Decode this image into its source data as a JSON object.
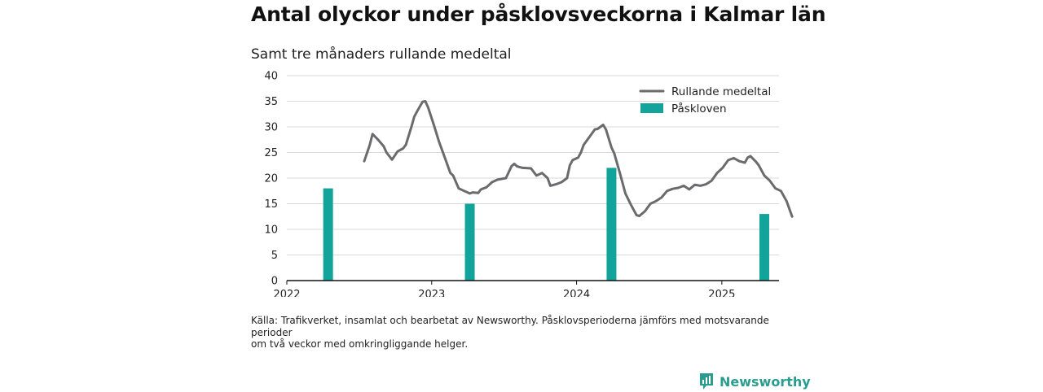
{
  "title": "Antal olyckor under påsklovsveckorna i Kalmar län",
  "subtitle": "Samt tre månaders rullande medeltal",
  "source_lines": [
    "Källa: Trafikverket, insamlat och bearbetat av Newsworthy. Påsklovsperioderna jämförs med motsvarande",
    "perioder",
    "om två veckor med omkringliggande helger."
  ],
  "brand": {
    "name": "Newsworthy",
    "icon": "newsworthy-logo-icon"
  },
  "colors": {
    "line": "#6b6b6e",
    "bar": "#12a39a",
    "grid": "#d9d9d9",
    "axis": "#111111"
  },
  "chart_data": {
    "type": "bar+line",
    "ylim": [
      0,
      40
    ],
    "yticks": [
      0,
      5,
      10,
      15,
      20,
      25,
      30,
      35,
      40
    ],
    "xlim": [
      "2022-01-01",
      "2025-05-25"
    ],
    "xticks": [
      {
        "date": "2022-01-01",
        "label": "2022"
      },
      {
        "date": "2023-01-01",
        "label": "2023"
      },
      {
        "date": "2024-01-01",
        "label": "2024"
      },
      {
        "date": "2025-01-01",
        "label": "2025"
      }
    ],
    "grid": "horizontal",
    "legend_position": "top-right",
    "series": [
      {
        "name": "Rullande medeltal",
        "kind": "line",
        "points": [
          [
            "2022-07-15",
            23.3
          ],
          [
            "2022-07-29",
            26.5
          ],
          [
            "2022-08-05",
            28.6
          ],
          [
            "2022-08-19",
            27.5
          ],
          [
            "2022-09-02",
            26.2
          ],
          [
            "2022-09-09",
            25.0
          ],
          [
            "2022-09-23",
            23.6
          ],
          [
            "2022-10-07",
            25.2
          ],
          [
            "2022-10-21",
            25.8
          ],
          [
            "2022-10-28",
            26.5
          ],
          [
            "2022-11-11",
            30.0
          ],
          [
            "2022-11-18",
            32.0
          ],
          [
            "2022-11-25",
            33.0
          ],
          [
            "2022-12-09",
            34.9
          ],
          [
            "2022-12-16",
            35.0
          ],
          [
            "2022-12-23",
            33.8
          ],
          [
            "2023-01-06",
            30.5
          ],
          [
            "2023-01-20",
            27.0
          ],
          [
            "2023-02-03",
            24.0
          ],
          [
            "2023-02-17",
            21.0
          ],
          [
            "2023-02-24",
            20.5
          ],
          [
            "2023-03-10",
            18.0
          ],
          [
            "2023-03-24",
            17.5
          ],
          [
            "2023-04-07",
            17.0
          ],
          [
            "2023-04-14",
            17.2
          ],
          [
            "2023-04-28",
            17.1
          ],
          [
            "2023-05-05",
            17.8
          ],
          [
            "2023-05-19",
            18.2
          ],
          [
            "2023-06-02",
            19.2
          ],
          [
            "2023-06-16",
            19.7
          ],
          [
            "2023-07-07",
            20.0
          ],
          [
            "2023-07-21",
            22.3
          ],
          [
            "2023-07-28",
            22.8
          ],
          [
            "2023-08-04",
            22.3
          ],
          [
            "2023-08-18",
            22.0
          ],
          [
            "2023-09-08",
            21.9
          ],
          [
            "2023-09-22",
            20.5
          ],
          [
            "2023-10-06",
            21.0
          ],
          [
            "2023-10-20",
            20.0
          ],
          [
            "2023-10-27",
            18.5
          ],
          [
            "2023-11-10",
            18.8
          ],
          [
            "2023-11-24",
            19.2
          ],
          [
            "2023-12-08",
            20.0
          ],
          [
            "2023-12-15",
            22.5
          ],
          [
            "2023-12-22",
            23.5
          ],
          [
            "2024-01-05",
            24.0
          ],
          [
            "2024-01-12",
            25.0
          ],
          [
            "2024-01-19",
            26.5
          ],
          [
            "2024-02-02",
            28.0
          ],
          [
            "2024-02-16",
            29.5
          ],
          [
            "2024-02-23",
            29.6
          ],
          [
            "2024-03-08",
            30.4
          ],
          [
            "2024-03-15",
            29.5
          ],
          [
            "2024-03-29",
            26.0
          ],
          [
            "2024-04-05",
            24.8
          ],
          [
            "2024-04-19",
            21.0
          ],
          [
            "2024-05-03",
            17.0
          ],
          [
            "2024-05-17",
            14.8
          ],
          [
            "2024-05-31",
            12.8
          ],
          [
            "2024-06-07",
            12.6
          ],
          [
            "2024-06-21",
            13.5
          ],
          [
            "2024-07-05",
            15.0
          ],
          [
            "2024-07-19",
            15.5
          ],
          [
            "2024-08-02",
            16.2
          ],
          [
            "2024-08-16",
            17.5
          ],
          [
            "2024-08-30",
            17.9
          ],
          [
            "2024-09-13",
            18.1
          ],
          [
            "2024-09-27",
            18.5
          ],
          [
            "2024-10-11",
            17.8
          ],
          [
            "2024-10-25",
            18.7
          ],
          [
            "2024-11-08",
            18.5
          ],
          [
            "2024-11-22",
            18.8
          ],
          [
            "2024-12-06",
            19.5
          ],
          [
            "2024-12-20",
            21.0
          ],
          [
            "2025-01-03",
            22.0
          ],
          [
            "2025-01-17",
            23.5
          ],
          [
            "2025-01-31",
            23.9
          ],
          [
            "2025-02-14",
            23.3
          ],
          [
            "2025-02-28",
            23.0
          ],
          [
            "2025-03-07",
            24.0
          ],
          [
            "2025-03-14",
            24.3
          ],
          [
            "2025-03-28",
            23.2
          ],
          [
            "2025-04-04",
            22.5
          ],
          [
            "2025-04-18",
            20.5
          ],
          [
            "2025-05-02",
            19.5
          ],
          [
            "2025-05-16",
            18.0
          ],
          [
            "2025-05-30",
            17.5
          ],
          [
            "2025-06-13",
            15.5
          ],
          [
            "2025-06-27",
            12.5
          ]
        ]
      },
      {
        "name": "Påskloven",
        "kind": "bar",
        "points": [
          [
            "2022-04-15",
            18
          ],
          [
            "2023-04-07",
            15
          ],
          [
            "2024-03-29",
            22
          ],
          [
            "2025-04-18",
            13
          ]
        ]
      }
    ]
  }
}
